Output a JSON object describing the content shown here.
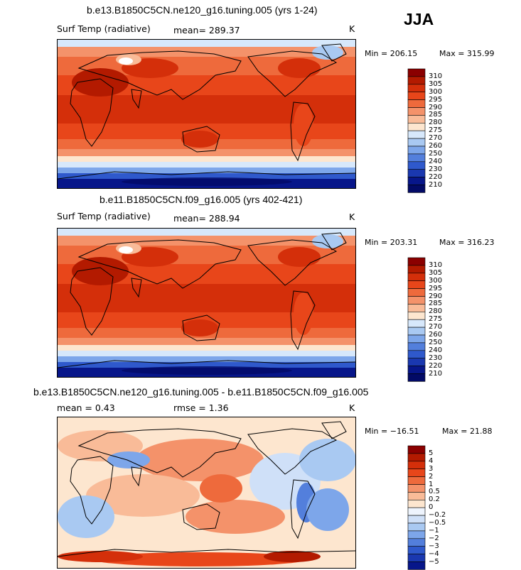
{
  "season": "JJA",
  "chart_data": [
    {
      "type": "heatmap",
      "title": "b.e13.B1850C5CN.ne120_g16.tuning.005 (yrs 1-24)",
      "variable": "Surf Temp (radiative)",
      "units": "K",
      "stat_text": "mean= 289.37",
      "mean": 289.37,
      "min": 206.15,
      "max": 315.99,
      "min_text": "Min = 206.15",
      "max_text": "Max = 315.99",
      "contour_levels": [
        "310",
        "305",
        "300",
        "295",
        "290",
        "285",
        "280",
        "275",
        "270",
        "260",
        "250",
        "240",
        "230",
        "220",
        "210"
      ],
      "colors": [
        "#8b0000",
        "#b31a00",
        "#d42f0a",
        "#e8461a",
        "#ee6a3c",
        "#f4926a",
        "#f9bb98",
        "#fde6cf",
        "#d7e8fb",
        "#a9c9f2",
        "#7da6ea",
        "#537fdc",
        "#2f59cc",
        "#1a38b0",
        "#07168a",
        "#020a66"
      ]
    },
    {
      "type": "heatmap",
      "title": "b.e11.B1850C5CN.f09_g16.005 (yrs 402-421)",
      "variable": "Surf Temp (radiative)",
      "units": "K",
      "stat_text": "mean= 288.94",
      "mean": 288.94,
      "min": 203.31,
      "max": 316.23,
      "min_text": "Min = 203.31",
      "max_text": "Max = 316.23",
      "contour_levels": [
        "310",
        "305",
        "300",
        "295",
        "290",
        "285",
        "280",
        "275",
        "270",
        "260",
        "250",
        "240",
        "230",
        "220",
        "210"
      ],
      "colors": [
        "#8b0000",
        "#b31a00",
        "#d42f0a",
        "#e8461a",
        "#ee6a3c",
        "#f4926a",
        "#f9bb98",
        "#fde6cf",
        "#d7e8fb",
        "#a9c9f2",
        "#7da6ea",
        "#537fdc",
        "#2f59cc",
        "#1a38b0",
        "#07168a",
        "#020a66"
      ]
    },
    {
      "type": "heatmap",
      "title": "b.e13.B1850C5CN.ne120_g16.tuning.005 - b.e11.B1850C5CN.f09_g16.005",
      "variable": "",
      "units": "K",
      "mean_text": "mean =    0.43",
      "rmse_text": "rmse =    1.36",
      "mean": 0.43,
      "rmse": 1.36,
      "min": -16.51,
      "max": 21.88,
      "min_text": "Min = −16.51",
      "max_text": "Max =  21.88",
      "contour_levels": [
        "5",
        "4",
        "3",
        "2",
        "1",
        "0.5",
        "0.2",
        "0",
        "−0.2",
        "−0.5",
        "−1",
        "−2",
        "−3",
        "−4",
        "−5"
      ],
      "colors": [
        "#8b0000",
        "#b31a00",
        "#d42f0a",
        "#e8461a",
        "#ee6a3c",
        "#f4926a",
        "#f9bb98",
        "#fde6cf",
        "#eef4fd",
        "#cfe0f8",
        "#a9c9f2",
        "#7da6ea",
        "#537fdc",
        "#2f59cc",
        "#1a38b0",
        "#07168a"
      ]
    }
  ]
}
